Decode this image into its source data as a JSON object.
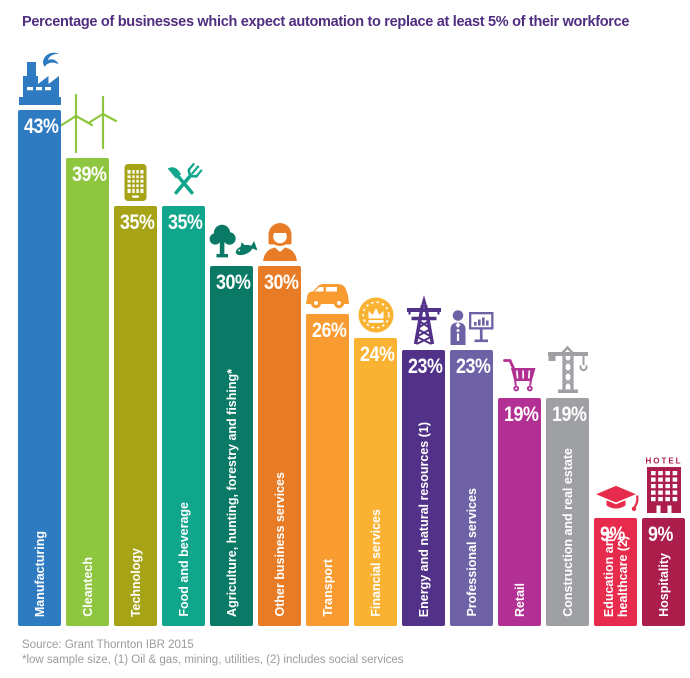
{
  "title": {
    "text": "Percentage of businesses which expect automation to replace at least 5% of their workforce",
    "color": "#4f2d7f"
  },
  "footer": {
    "source": "Source: Grant Thornton IBR 2015",
    "footnote": "*low sample size, (1) Oil & gas, mining, utilities, (2) includes social services"
  },
  "chart_data": {
    "type": "bar",
    "title": "Percentage of businesses which expect automation to replace at least 5% of their workforce",
    "unit": "%",
    "ylim": [
      0,
      45
    ],
    "grid": false,
    "legend": "none",
    "value_label_position": "inside-top",
    "category_label_position": "inside-bottom-vertical",
    "categories": [
      "Manufacturing",
      "Cleantech",
      "Technology",
      "Food and beverage",
      "Agriculture, hunting, forestry and fishing*",
      "Other business services",
      "Transport",
      "Financial services",
      "Energy and natural resources (1)",
      "Professional services",
      "Retail",
      "Construction and real estate",
      "Education and\nhealthcare (2)",
      "Hospitality"
    ],
    "values": [
      43,
      39,
      35,
      35,
      30,
      30,
      26,
      24,
      23,
      23,
      19,
      19,
      9,
      9
    ],
    "colors": [
      "#2f7bc1",
      "#8ec63f",
      "#a6a316",
      "#10a68c",
      "#0a7a66",
      "#e87c26",
      "#f89b30",
      "#f9b232",
      "#523189",
      "#6f61a6",
      "#b22f93",
      "#9fa0a4",
      "#e72b4c",
      "#ab1e4c"
    ],
    "icons": [
      "factory-icon",
      "wind-turbine-icon",
      "mobile-phone-icon",
      "cutlery-icon",
      "tree-fish-icon",
      "person-icon",
      "car-icon",
      "coin-crown-icon",
      "power-pylon-icon",
      "person-chart-icon",
      "shopping-cart-icon",
      "crane-icon",
      "graduation-cap-icon",
      "hotel-icon"
    ],
    "hotel_sign": "HOTEL"
  }
}
